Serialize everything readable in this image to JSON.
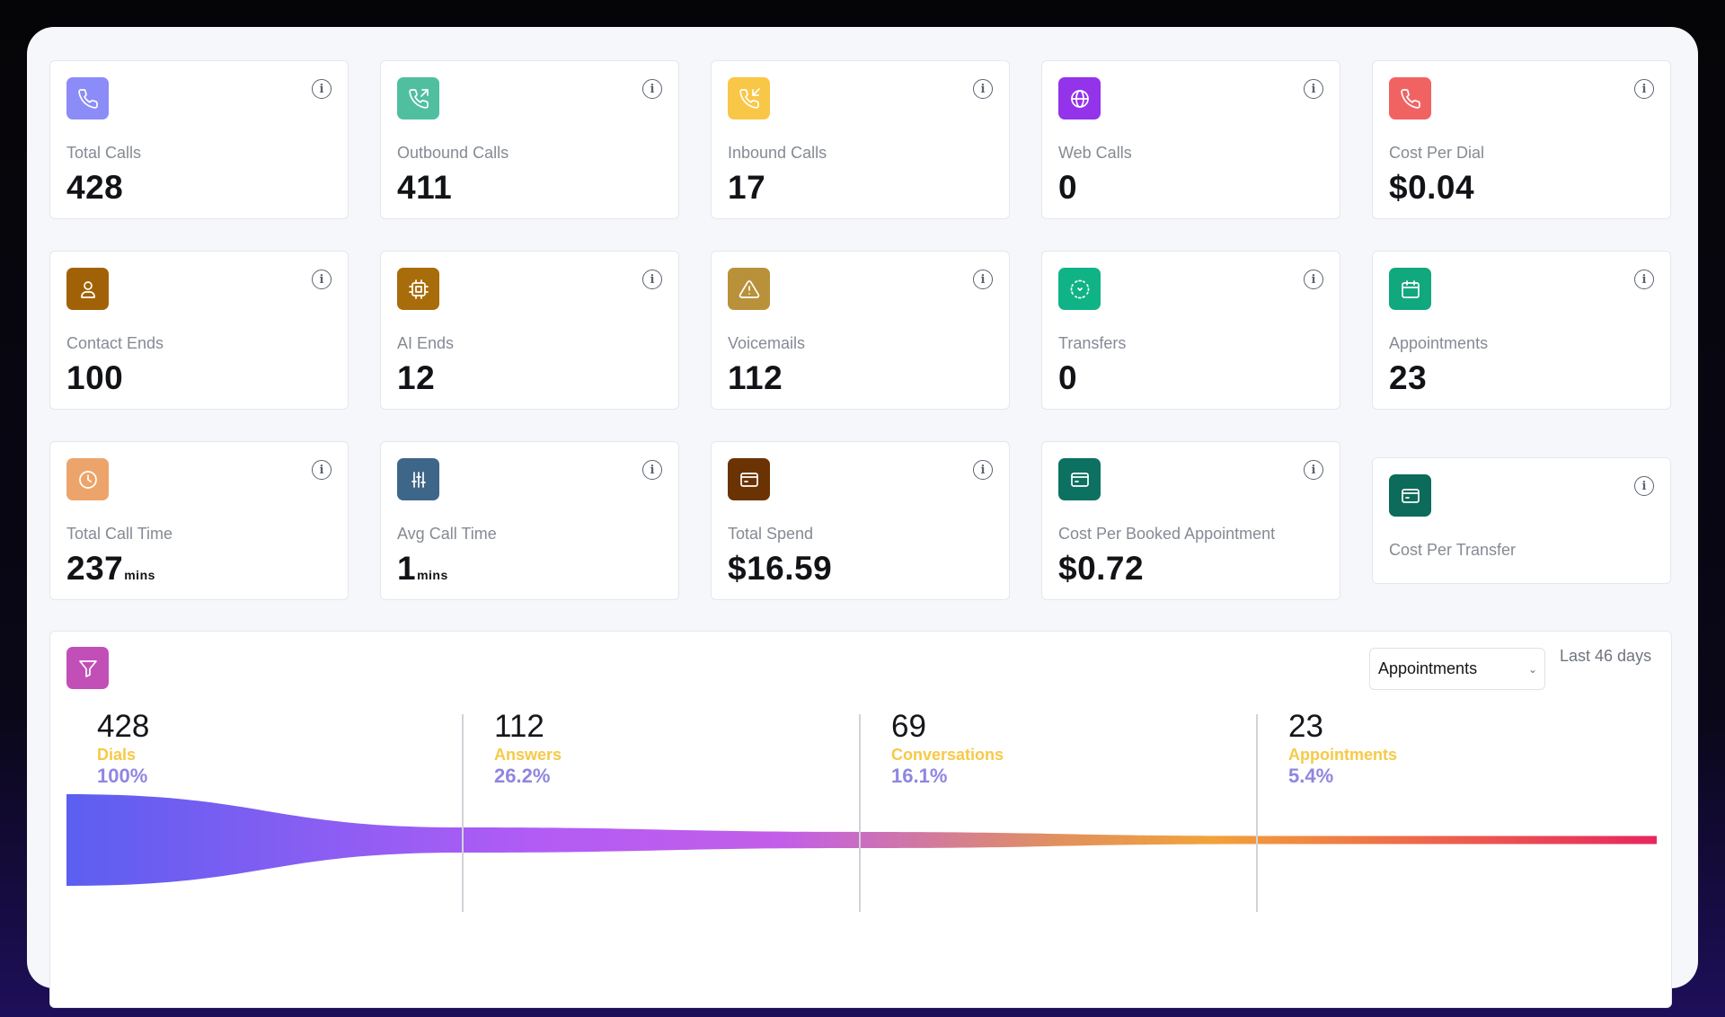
{
  "colors": {
    "total_calls": "#8b8cf7",
    "outbound_calls": "#4fbfa0",
    "inbound_calls": "#f9c748",
    "web_calls": "#9333ea",
    "cost_per_dial": "#f16363",
    "contact_ends": "#a16207",
    "ai_ends": "#a86c0a",
    "voicemails": "#b9913a",
    "transfers": "#10b386",
    "appointments": "#10a87c",
    "total_call_time": "#eda46a",
    "avg_call_time": "#3e6688",
    "total_spend": "#6b3303",
    "cost_per_booked": "#0c7160",
    "cost_per_transfer": "#0c6b5a",
    "funnel_icon": "#c24fb7",
    "stage_name": "#f7c948",
    "stage_pct": "#8f86e0"
  },
  "cards": {
    "total_calls": {
      "icon": "phone-icon",
      "label": "Total Calls",
      "value": "428"
    },
    "outbound_calls": {
      "icon": "phone-outgoing-icon",
      "label": "Outbound Calls",
      "value": "411"
    },
    "inbound_calls": {
      "icon": "phone-incoming-icon",
      "label": "Inbound Calls",
      "value": "17"
    },
    "web_calls": {
      "icon": "globe-icon",
      "label": "Web Calls",
      "value": "0"
    },
    "cost_per_dial": {
      "icon": "phone-icon",
      "label": "Cost Per Dial",
      "value": "$0.04"
    },
    "contact_ends": {
      "icon": "user-icon",
      "label": "Contact Ends",
      "value": "100"
    },
    "ai_ends": {
      "icon": "cpu-icon",
      "label": "AI Ends",
      "value": "12"
    },
    "voicemails": {
      "icon": "alert-triangle-icon",
      "label": "Voicemails",
      "value": "112"
    },
    "transfers": {
      "icon": "transfer-icon",
      "label": "Transfers",
      "value": "0"
    },
    "appointments": {
      "icon": "calendar-icon",
      "label": "Appointments",
      "value": "23"
    },
    "total_call_time": {
      "icon": "clock-icon",
      "label": "Total Call Time",
      "value": "237",
      "unit": "mins"
    },
    "avg_call_time": {
      "icon": "sliders-icon",
      "label": "Avg Call Time",
      "value": "1",
      "unit": "mins"
    },
    "total_spend": {
      "icon": "credit-card-icon",
      "label": "Total Spend",
      "value": "$16.59"
    },
    "cost_per_booked": {
      "icon": "credit-card-icon",
      "label": "Cost Per Booked Appointment",
      "value": "$0.72"
    },
    "cost_per_transfer": {
      "icon": "credit-card-icon",
      "label": "Cost Per Transfer",
      "value": ""
    }
  },
  "funnel": {
    "icon": "filter-icon",
    "select_value": "Appointments",
    "range": "Last 46 days",
    "stages": [
      {
        "count": "428",
        "name": "Dials",
        "pct": "100%"
      },
      {
        "count": "112",
        "name": "Answers",
        "pct": "26.2%"
      },
      {
        "count": "69",
        "name": "Conversations",
        "pct": "16.1%"
      },
      {
        "count": "23",
        "name": "Appointments",
        "pct": "5.4%"
      }
    ]
  }
}
